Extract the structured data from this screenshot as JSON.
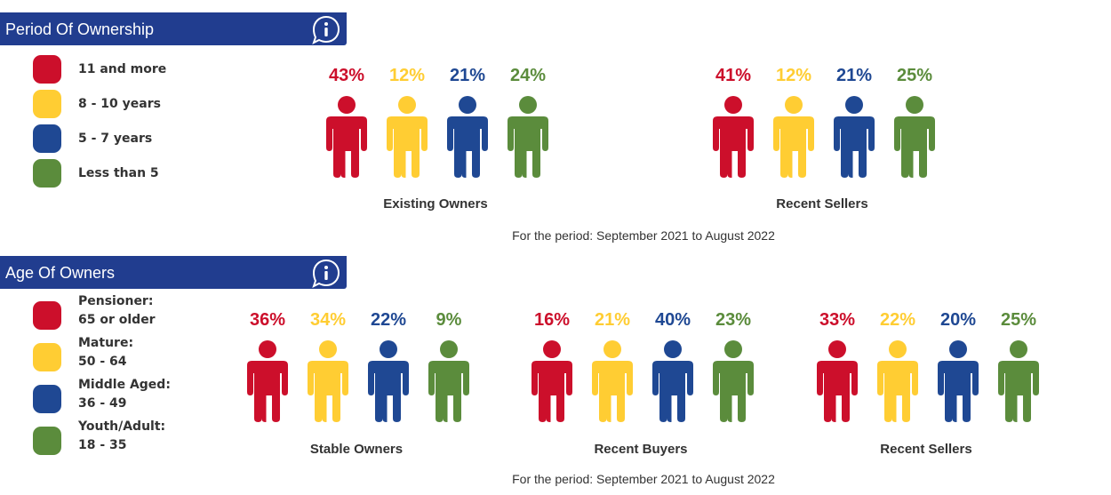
{
  "colors": {
    "red": "#cc0f2b",
    "yellow": "#ffcd33",
    "blue": "#1f4893",
    "green": "#5b8c3c",
    "header": "#213d8f"
  },
  "ownership": {
    "title": "Period Of Ownership",
    "info_icon": "info-icon",
    "legend": [
      {
        "lines": [
          "11 and more"
        ],
        "color": "#cc0f2b"
      },
      {
        "lines": [
          "8 - 10 years"
        ],
        "color": "#ffcd33"
      },
      {
        "lines": [
          "5 - 7 years"
        ],
        "color": "#1f4893"
      },
      {
        "lines": [
          "Less than 5"
        ],
        "color": "#5b8c3c"
      }
    ],
    "period_text": "For the period: September 2021 to August 2022"
  },
  "age": {
    "title": "Age Of Owners",
    "info_icon": "info-icon",
    "legend": [
      {
        "lines": [
          "Pensioner:",
          "65 or older"
        ],
        "color": "#cc0f2b"
      },
      {
        "lines": [
          "Mature:",
          "50 - 64"
        ],
        "color": "#ffcd33"
      },
      {
        "lines": [
          "Middle Aged:",
          "36 - 49"
        ],
        "color": "#1f4893"
      },
      {
        "lines": [
          "Youth/Adult:",
          "18 - 35"
        ],
        "color": "#5b8c3c"
      }
    ],
    "period_text": "For the period: September 2021 to August 2022"
  },
  "chart_data": [
    {
      "type": "bar",
      "title": "Period Of Ownership",
      "categories": [
        "11 and more",
        "8 - 10 years",
        "5 - 7 years",
        "Less than 5"
      ],
      "series": [
        {
          "name": "Existing Owners",
          "values": [
            43,
            12,
            21,
            24
          ]
        },
        {
          "name": "Recent Sellers",
          "values": [
            41,
            12,
            21,
            25
          ]
        }
      ],
      "unit": "%",
      "labels": {
        "Existing Owners": [
          "43%",
          "12%",
          "21%",
          "24%"
        ],
        "Recent Sellers": [
          "41%",
          "12%",
          "21%",
          "25%"
        ]
      }
    },
    {
      "type": "bar",
      "title": "Age Of Owners",
      "categories": [
        "Pensioner: 65 or older",
        "Mature: 50 - 64",
        "Middle Aged: 36 - 49",
        "Youth/Adult: 18 - 35"
      ],
      "series": [
        {
          "name": "Stable Owners",
          "values": [
            36,
            34,
            22,
            9
          ]
        },
        {
          "name": "Recent Buyers",
          "values": [
            16,
            21,
            40,
            23
          ]
        },
        {
          "name": "Recent Sellers",
          "values": [
            33,
            22,
            20,
            25
          ]
        }
      ],
      "unit": "%",
      "labels": {
        "Stable Owners": [
          "36%",
          "34%",
          "22%",
          "9%"
        ],
        "Recent Buyers": [
          "16%",
          "21%",
          "40%",
          "23%"
        ],
        "Recent Sellers": [
          "33%",
          "22%",
          "20%",
          "25%"
        ]
      }
    }
  ]
}
